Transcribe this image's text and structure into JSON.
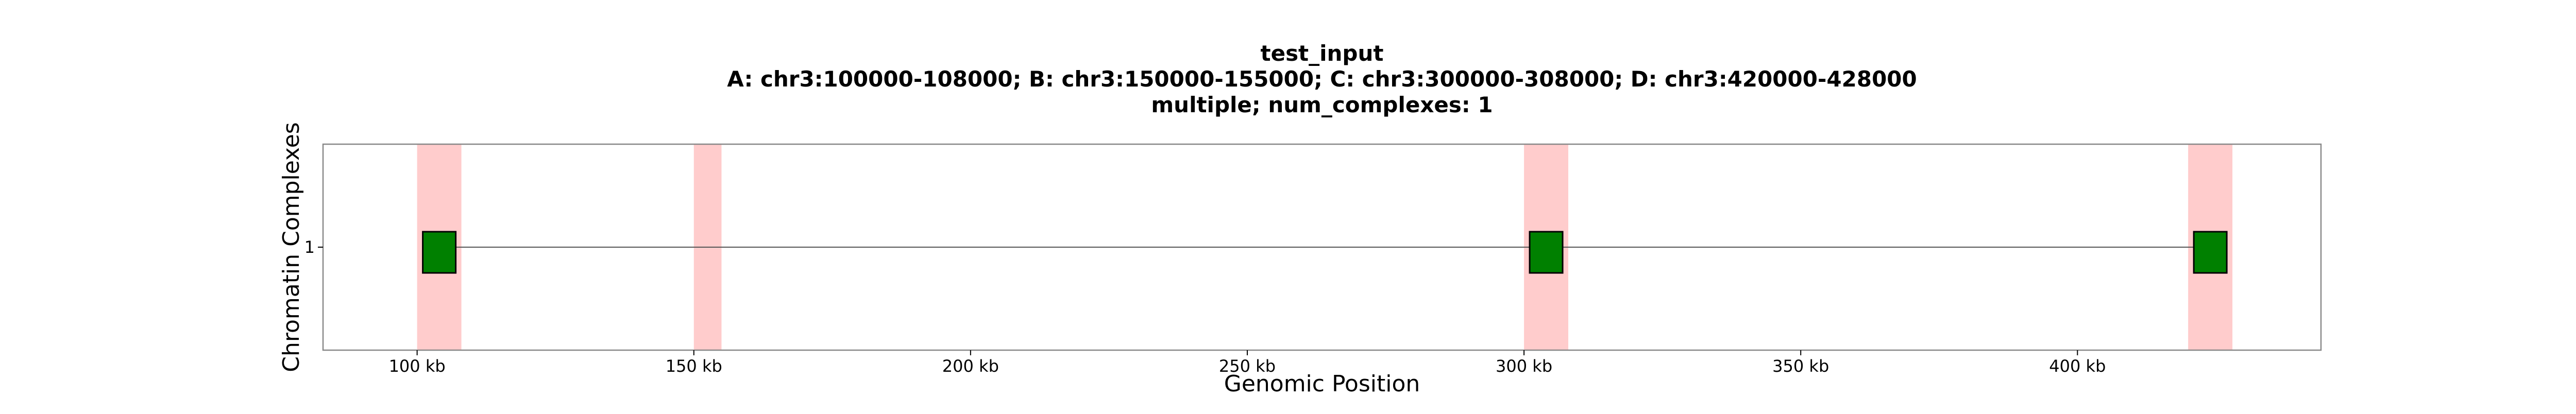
{
  "chart_data": {
    "type": "scatter",
    "title_lines": [
      "test_input",
      "A: chr3:100000-108000; B: chr3:150000-155000; C: chr3:300000-308000; D: chr3:420000-428000",
      "multiple; num_complexes: 1"
    ],
    "xlabel": "Genomic Position",
    "ylabel": "Chromatin Complexes",
    "xlim": [
      83000,
      444000
    ],
    "ylim": [
      0,
      2
    ],
    "x_ticks": [
      {
        "value": 100000,
        "label": "100 kb"
      },
      {
        "value": 150000,
        "label": "150 kb"
      },
      {
        "value": 200000,
        "label": "200 kb"
      },
      {
        "value": 250000,
        "label": "250 kb"
      },
      {
        "value": 300000,
        "label": "300 kb"
      },
      {
        "value": 350000,
        "label": "350 kb"
      },
      {
        "value": 400000,
        "label": "400 kb"
      }
    ],
    "y_ticks": [
      {
        "value": 1,
        "label": "1"
      }
    ],
    "regions": [
      {
        "start": 100000,
        "end": 108000
      },
      {
        "start": 150000,
        "end": 155000
      },
      {
        "start": 300000,
        "end": 308000
      },
      {
        "start": 420000,
        "end": 428000
      }
    ],
    "complexes": [
      {
        "y": 1,
        "line_start": 104000,
        "line_end": 424000,
        "fragments": [
          104000,
          304000,
          424000
        ]
      }
    ],
    "colors": {
      "region": "#ffcccc",
      "fragment": "#008000",
      "fragment_edge": "#000000",
      "line": "#555555",
      "axis": "#888888",
      "text": "#000000"
    },
    "grid": false
  }
}
